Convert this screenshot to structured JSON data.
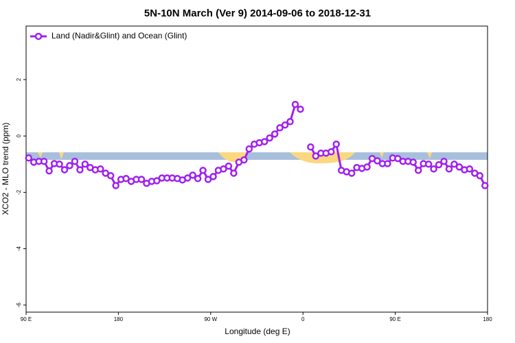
{
  "chart_data": {
    "type": "line",
    "title": "5N-10N March (Ver 9)   2014-09-06 to 2018-12-31",
    "xlabel": "Longitude (deg E)",
    "ylabel": "XCO2 - MLO trend (ppm)",
    "xlim": [
      90,
      540
    ],
    "ylim": [
      -6.25,
      3.9
    ],
    "xticks": [
      {
        "value": 90,
        "label": "90 E"
      },
      {
        "value": 180,
        "label": "180"
      },
      {
        "value": 270,
        "label": "90 W"
      },
      {
        "value": 360,
        "label": "0"
      },
      {
        "value": 450,
        "label": "90 E"
      },
      {
        "value": 540,
        "label": "180"
      }
    ],
    "yticks": [
      -6,
      -4,
      -2,
      0,
      2
    ],
    "legend": "top-left",
    "x": [
      92.5,
      97.5,
      102.5,
      107.5,
      112.5,
      117.5,
      122.5,
      127.5,
      132.5,
      137.5,
      142.5,
      147.5,
      152.5,
      157.5,
      162.5,
      167.5,
      172.5,
      177.5,
      182.5,
      187.5,
      192.5,
      197.5,
      202.5,
      207.5,
      212.5,
      217.5,
      222.5,
      227.5,
      232.5,
      237.5,
      242.5,
      247.5,
      252.5,
      257.5,
      262.5,
      267.5,
      272.5,
      277.5,
      282.5,
      287.5,
      292.5,
      297.5,
      302.5,
      307.5,
      312.5,
      317.5,
      322.5,
      327.5,
      332.5,
      337.5,
      342.5,
      347.5,
      352.5,
      357.5,
      362.5,
      367.5,
      372.5,
      377.5,
      382.5,
      387.5,
      392.5,
      397.5,
      402.5,
      407.5,
      412.5,
      417.5,
      422.5,
      427.5,
      432.5,
      437.5,
      442.5,
      447.5,
      452.5,
      457.5,
      462.5,
      467.5,
      472.5,
      477.5,
      482.5,
      487.5,
      492.5,
      497.5,
      502.5,
      507.5,
      512.5,
      517.5,
      522.5,
      527.5,
      532.5,
      537.5
    ],
    "series": [
      {
        "name": "Land (Nadir&Glint) and Ocean (Glint)",
        "color": "#a020f0",
        "values": [
          -0.78,
          -0.93,
          -0.9,
          -0.9,
          -1.24,
          -0.98,
          -1.0,
          -1.2,
          -1.05,
          -0.9,
          -1.2,
          -1.0,
          -1.12,
          -1.2,
          -1.17,
          -1.32,
          -1.41,
          -1.76,
          -1.54,
          -1.51,
          -1.61,
          -1.54,
          -1.54,
          -1.68,
          -1.61,
          -1.59,
          -1.49,
          -1.49,
          -1.49,
          -1.51,
          -1.56,
          -1.49,
          -1.39,
          -1.51,
          -1.22,
          -1.54,
          -1.44,
          -1.22,
          -1.17,
          -1.07,
          -1.32,
          -0.93,
          -0.85,
          -0.46,
          -0.29,
          -0.24,
          -0.2,
          -0.07,
          0.07,
          0.29,
          0.39,
          0.51,
          1.12,
          0.95,
          null,
          -0.39,
          -0.71,
          -0.61,
          -0.61,
          -0.56,
          -0.29,
          -1.22,
          -1.27,
          -1.32,
          -1.12,
          -1.15,
          -1.1,
          -0.8,
          -0.88,
          -0.98,
          -0.98,
          -0.78,
          -0.8,
          -0.9,
          -0.9,
          -0.93,
          -1.22,
          -0.98,
          -1.0,
          -1.17,
          -1.02,
          -0.9,
          -1.17,
          -1.0,
          -1.1,
          -1.2,
          -1.17,
          -1.32,
          -1.41,
          -1.76
        ]
      }
    ]
  }
}
